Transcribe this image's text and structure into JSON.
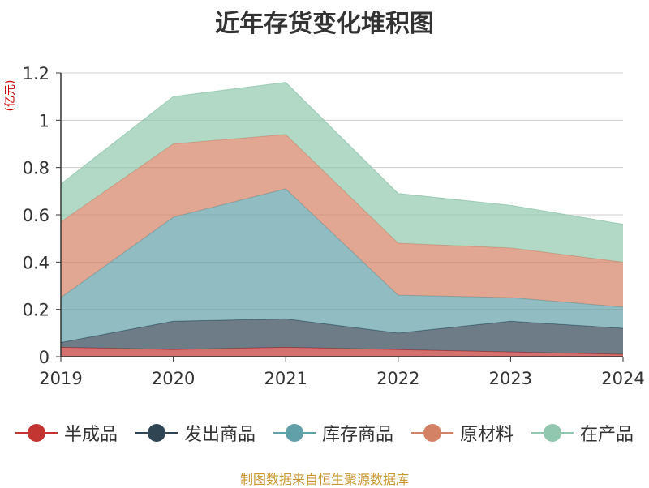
{
  "chart_data": {
    "type": "area",
    "stacked": true,
    "title": "近年存货变化堆积图",
    "ylabel": "(亿元)",
    "xlabel": "",
    "x": [
      "2019",
      "2020",
      "2021",
      "2022",
      "2023",
      "2024"
    ],
    "ylim": [
      0,
      1.2
    ],
    "yticks": [
      "0",
      "0.2",
      "0.4",
      "0.6",
      "0.8",
      "1",
      "1.2"
    ],
    "grid": true,
    "legend_position": "bottom",
    "series": [
      {
        "name": "半成品",
        "color": "#c23531",
        "values": [
          0.04,
          0.03,
          0.04,
          0.03,
          0.02,
          0.01
        ]
      },
      {
        "name": "发出商品",
        "color": "#2f4554",
        "values": [
          0.02,
          0.12,
          0.12,
          0.07,
          0.13,
          0.11
        ]
      },
      {
        "name": "库存商品",
        "color": "#61a0a8",
        "values": [
          0.19,
          0.44,
          0.55,
          0.16,
          0.1,
          0.09
        ]
      },
      {
        "name": "原材料",
        "color": "#d48265",
        "values": [
          0.32,
          0.31,
          0.23,
          0.22,
          0.21,
          0.19
        ]
      },
      {
        "name": "在产品",
        "color": "#91c7ae",
        "values": [
          0.16,
          0.2,
          0.22,
          0.21,
          0.18,
          0.16
        ]
      }
    ]
  },
  "source_note": "制图数据来自恒生聚源数据库"
}
